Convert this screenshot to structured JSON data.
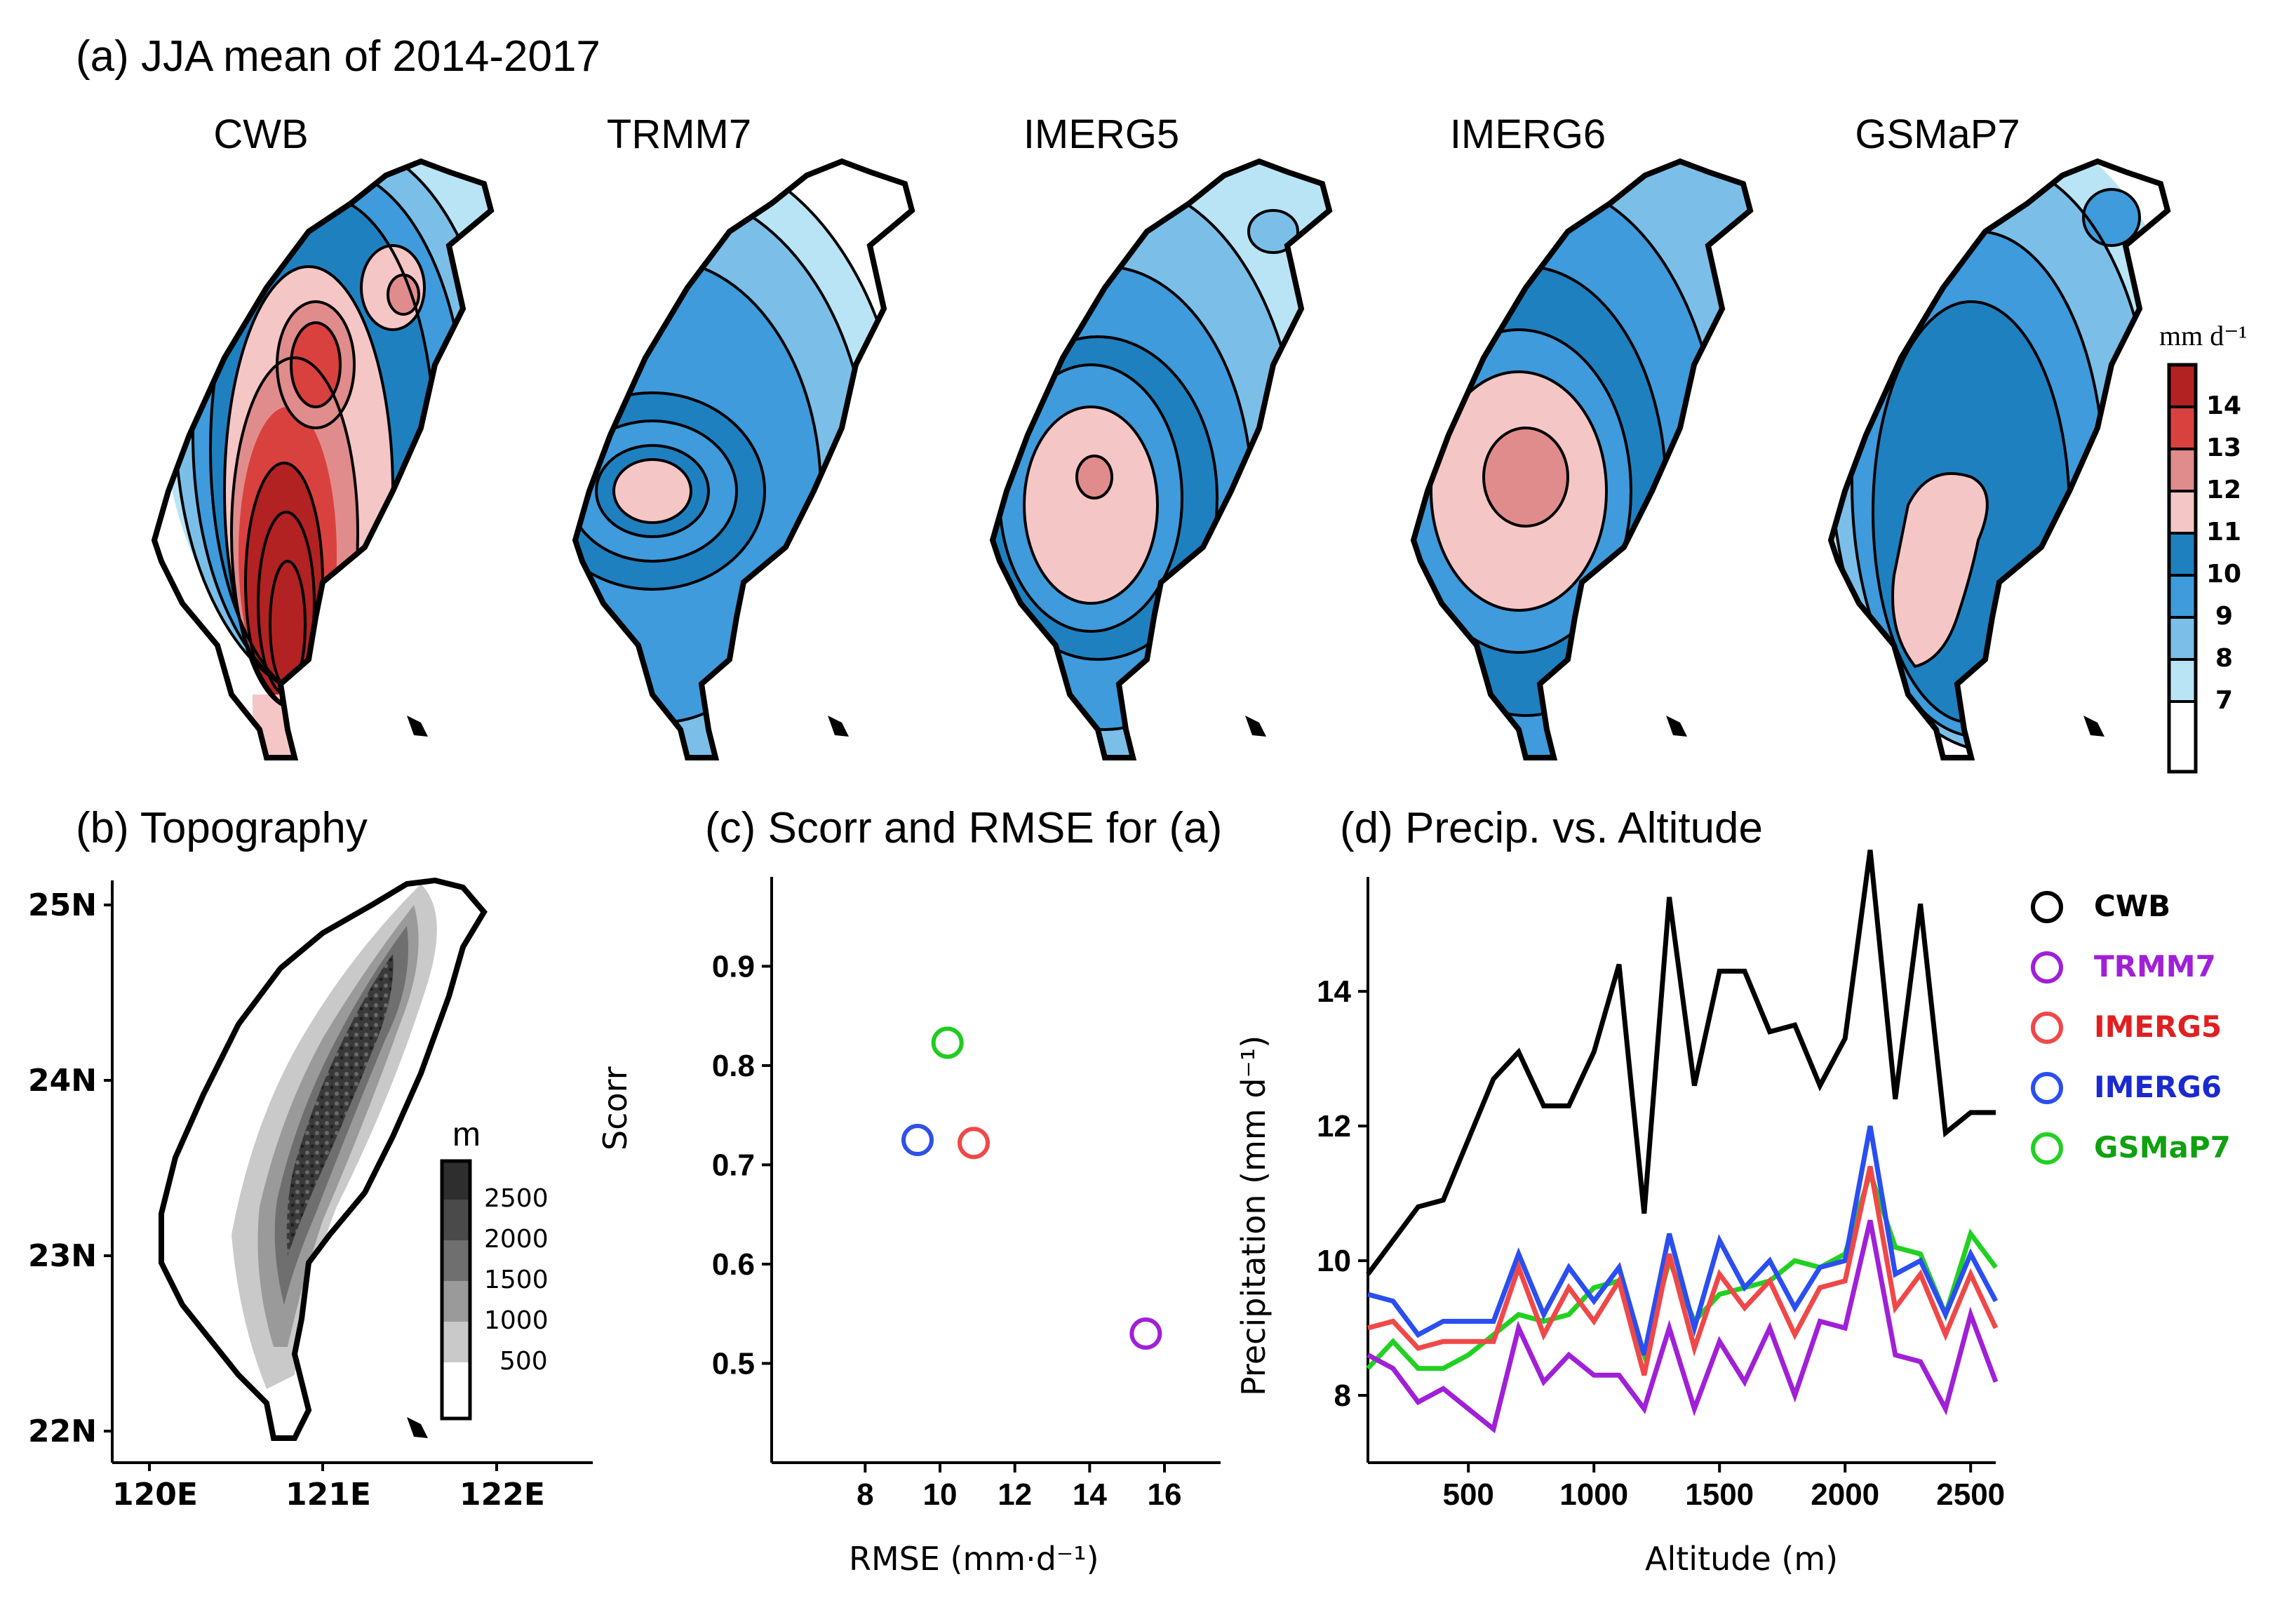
{
  "panel_a": {
    "title": "(a) JJA mean of 2014-2017",
    "maps": [
      {
        "name": "CWB",
        "field": "cwb"
      },
      {
        "name": "TRMM7",
        "field": "trmm"
      },
      {
        "name": "IMERG5",
        "field": "imerg5"
      },
      {
        "name": "IMERG6",
        "field": "imerg6"
      },
      {
        "name": "GSMaP7",
        "field": "gsmap"
      }
    ],
    "colorbar": {
      "unit": "mm d⁻¹",
      "levels": [
        "14",
        "13",
        "12",
        "11",
        "10",
        "9",
        "8",
        "7"
      ],
      "colors": [
        "#b22222",
        "#d9413f",
        "#e08c8c",
        "#f5c6c6",
        "#1f80c0",
        "#3f9bdb",
        "#7bbfe9",
        "#b9e4f5",
        "#ffffff"
      ]
    }
  },
  "panel_b": {
    "title": "(b) Topography",
    "lat_ticks": [
      "25N",
      "24N",
      "23N",
      "22N"
    ],
    "lon_ticks": [
      "120E",
      "121E",
      "122E"
    ],
    "colorbar": {
      "unit": "m",
      "levels": [
        "2500",
        "2000",
        "1500",
        "1000",
        "500"
      ],
      "colors": [
        "#2e2e2e",
        "#4a4a4a",
        "#6f6f6f",
        "#9a9a9a",
        "#c9c9c9",
        "#ffffff"
      ]
    }
  },
  "chart_data": [
    {
      "type": "scatter",
      "title": "(c) Scorr and RMSE for (a)",
      "xlabel": "RMSE (mm·d⁻¹)",
      "ylabel": "Scorr",
      "xlim": [
        5.5,
        17.5
      ],
      "ylim": [
        0.4,
        0.99
      ],
      "xticks": [
        8,
        10,
        12,
        14,
        16
      ],
      "yticks": [
        0.5,
        0.6,
        0.7,
        0.8,
        0.9
      ],
      "points": [
        {
          "name": "TRMM7",
          "x": 15.5,
          "y": 0.53,
          "color": "#a020d8"
        },
        {
          "name": "IMERG5",
          "x": 10.9,
          "y": 0.722,
          "color": "#f04848"
        },
        {
          "name": "IMERG6",
          "x": 9.4,
          "y": 0.725,
          "color": "#3050e8"
        },
        {
          "name": "GSMaP7",
          "x": 10.2,
          "y": 0.823,
          "color": "#20cc20"
        }
      ]
    },
    {
      "type": "line",
      "title": "(d) Precip. vs. Altitude",
      "xlabel": "Altitude (m)",
      "ylabel": "Precipitation (mm d⁻¹)",
      "xlim": [
        100,
        2600
      ],
      "ylim": [
        7,
        15.7
      ],
      "xticks": [
        500,
        1000,
        1500,
        2000,
        2500
      ],
      "yticks": [
        8,
        10,
        12,
        14
      ],
      "x": [
        100,
        200,
        300,
        400,
        500,
        600,
        700,
        800,
        900,
        1000,
        1100,
        1200,
        1300,
        1400,
        1500,
        1600,
        1700,
        1800,
        1900,
        2000,
        2100,
        2200,
        2300,
        2400,
        2500,
        2600
      ],
      "series": [
        {
          "name": "CWB",
          "color": "#000000",
          "legend_color": "#000000",
          "values": [
            9.8,
            10.3,
            10.8,
            10.9,
            11.8,
            12.7,
            13.1,
            12.3,
            12.3,
            13.1,
            14.4,
            10.7,
            15.4,
            12.6,
            14.3,
            14.3,
            13.4,
            13.5,
            12.6,
            13.3,
            16.1,
            12.4,
            15.3,
            11.9,
            12.2,
            12.2
          ]
        },
        {
          "name": "TRMM7",
          "color": "#a020d8",
          "legend_color": "#a020d8",
          "values": [
            8.6,
            8.4,
            7.9,
            8.1,
            7.8,
            7.5,
            9.0,
            8.2,
            8.6,
            8.3,
            8.3,
            7.8,
            9.0,
            7.8,
            8.8,
            8.2,
            9.0,
            8.0,
            9.1,
            9.0,
            10.6,
            8.6,
            8.5,
            7.8,
            9.2,
            8.2
          ]
        },
        {
          "name": "IMERG5",
          "color": "#f04848",
          "legend_color": "#e02020",
          "values": [
            9.0,
            9.1,
            8.7,
            8.8,
            8.8,
            8.8,
            9.9,
            8.9,
            9.6,
            9.1,
            9.7,
            8.3,
            10.1,
            8.7,
            9.8,
            9.3,
            9.7,
            8.9,
            9.6,
            9.7,
            11.4,
            9.3,
            9.8,
            8.9,
            9.8,
            9.0
          ]
        },
        {
          "name": "IMERG6",
          "color": "#2a4ef0",
          "legend_color": "#1a2ad0",
          "values": [
            9.5,
            9.4,
            8.9,
            9.1,
            9.1,
            9.1,
            10.1,
            9.2,
            9.9,
            9.4,
            9.9,
            8.6,
            10.4,
            9.0,
            10.3,
            9.6,
            10.0,
            9.3,
            9.9,
            10.0,
            12.0,
            9.8,
            10.0,
            9.2,
            10.1,
            9.4
          ]
        },
        {
          "name": "GSMaP7",
          "color": "#22d022",
          "legend_color": "#10a010",
          "values": [
            8.4,
            8.8,
            8.4,
            8.4,
            8.6,
            8.9,
            9.2,
            9.1,
            9.2,
            9.6,
            9.7,
            8.6,
            10.0,
            9.1,
            9.5,
            9.6,
            9.7,
            10.0,
            9.9,
            10.1,
            11.3,
            10.2,
            10.1,
            9.2,
            10.4,
            9.9
          ]
        }
      ]
    }
  ]
}
